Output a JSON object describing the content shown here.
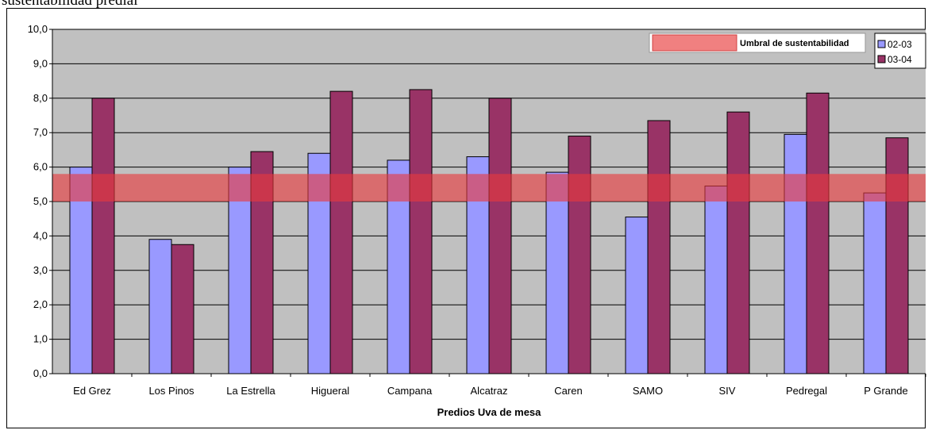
{
  "caption": "sustentabilidad predial",
  "chart_data": {
    "type": "bar",
    "xlabel": "Predios Uva de mesa",
    "ylabel": "",
    "ylim": [
      0,
      10
    ],
    "yticks": [
      "0,0",
      "1,0",
      "2,0",
      "3,0",
      "4,0",
      "5,0",
      "6,0",
      "7,0",
      "8,0",
      "9,0",
      "10,0"
    ],
    "categories": [
      "Ed Grez",
      "Los Pinos",
      "La Estrella",
      "Higueral",
      "Campana",
      "Alcatraz",
      "Caren",
      "SAMO",
      "SIV",
      "Pedregal",
      "P Grande"
    ],
    "series": [
      {
        "name": "02-03",
        "color": "#9999ff",
        "values": [
          6.0,
          3.9,
          6.0,
          6.4,
          6.2,
          6.3,
          5.85,
          4.55,
          5.45,
          6.95,
          5.25
        ]
      },
      {
        "name": "03-04",
        "color": "#993366",
        "values": [
          8.0,
          3.75,
          6.45,
          8.2,
          8.25,
          8.0,
          6.9,
          7.35,
          7.6,
          8.15,
          6.85
        ]
      }
    ],
    "threshold": {
      "label": "Umbral de sustentabilidad",
      "from": 5.0,
      "to": 5.8,
      "color": "#e8393b"
    },
    "grid": true,
    "legend_position": "top-right",
    "plot_background": "#c0c0c0"
  }
}
